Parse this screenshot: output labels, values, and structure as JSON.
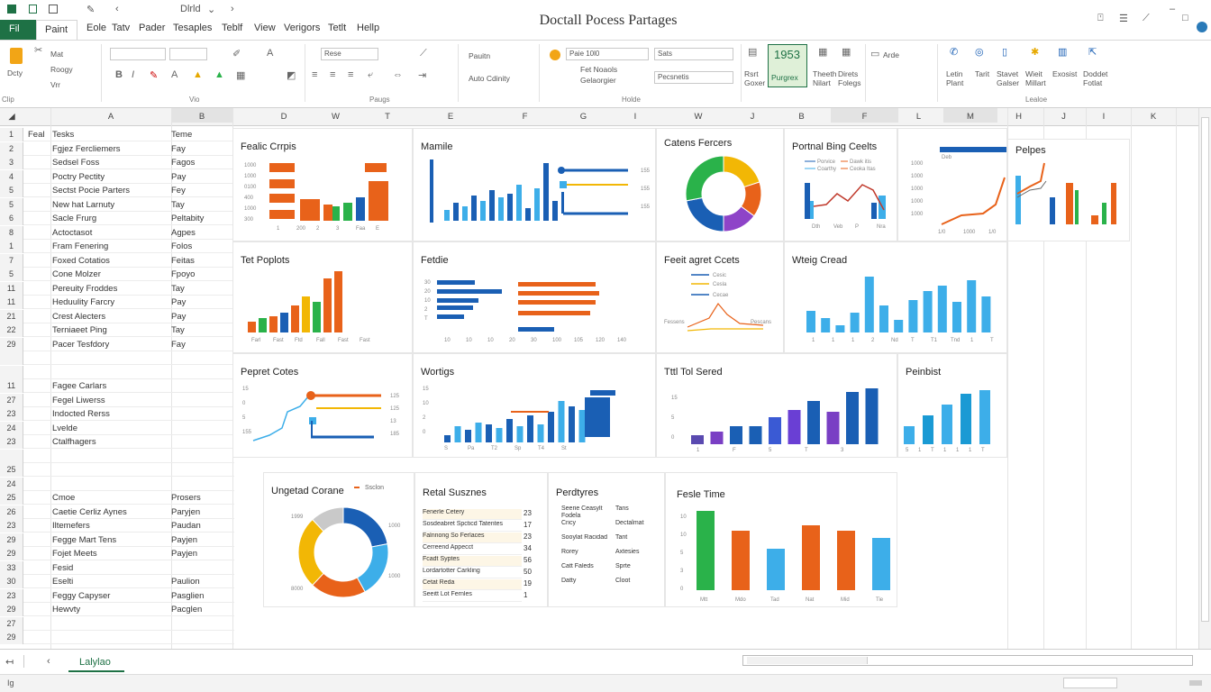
{
  "app": {
    "title": "Doctall Pocess Partages",
    "quick_access": [
      "Dlrld",
      "⌄"
    ],
    "window_controls": {
      "minimize": "–",
      "restore": "□",
      "close": "✕"
    }
  },
  "tabs": [
    {
      "label": "Fil"
    },
    {
      "label": "Paint"
    },
    {
      "label": "Eole"
    },
    {
      "label": "Tatv"
    },
    {
      "label": "Pader"
    },
    {
      "label": "Tesaples"
    },
    {
      "label": "Teblf"
    },
    {
      "label": "View"
    },
    {
      "label": "Verigors"
    },
    {
      "label": "Tetlt"
    },
    {
      "label": "Hellp"
    }
  ],
  "ribbon": {
    "clipboard": {
      "paste": "Dcty",
      "items": [
        "Mat",
        "Roogy",
        "Vrr"
      ]
    },
    "font_box": "",
    "font_size": "",
    "style_box": "Rese",
    "search_box": "Paie 10l0",
    "search_box2": "Sats",
    "pattern": "Pauitn",
    "anto_label": "Auto Cdinity",
    "items_small": [
      "Fet Noaols",
      "Gelaorgier"
    ],
    "dropdown_value": "Pecsnetis",
    "highlight_num": "1953",
    "highlight_label": "Purgrex",
    "items_right": [
      "Rsrt Goxer",
      "Theeth Nilart",
      "Direts Folegs"
    ],
    "ande": "Arde",
    "right_items": [
      "Letin Plant",
      "Tarit",
      "Stavet Galser",
      "Wieit Millart",
      "Exosist",
      "Doddet Fotlat"
    ],
    "group_labels": [
      "Clip",
      "Vio",
      "Paugs",
      "Holde",
      "Lealoe"
    ]
  },
  "columns": [
    "A",
    "B",
    "D",
    "W",
    "T",
    "E",
    "F",
    "G",
    "I",
    "W",
    "J",
    "B",
    "F",
    "L",
    "M",
    "H",
    "J",
    "I",
    "K"
  ],
  "rows": [
    {
      "n": "1",
      "a": "Tesks",
      "b": "Teme",
      "c0": "Feal"
    },
    {
      "n": "2",
      "a": "Fgjez Fercliemers",
      "b": "Fay"
    },
    {
      "n": "3",
      "a": "Sedsel Foss",
      "b": "Fagos"
    },
    {
      "n": "4",
      "a": "Poctry Pectity",
      "b": "Pay"
    },
    {
      "n": "5",
      "a": "Sectst Pocie Parters",
      "b": "Fey"
    },
    {
      "n": "5",
      "a": "New hat Larnuty",
      "b": "Tay"
    },
    {
      "n": "6",
      "a": "Sacle Frurg",
      "b": "Peltabity"
    },
    {
      "n": "8",
      "a": "Actoctasot",
      "b": "Agpes"
    },
    {
      "n": "1",
      "a": "Fram Fenering",
      "b": "Folos"
    },
    {
      "n": "7",
      "a": "Foxed Cotatios",
      "b": "Feitas"
    },
    {
      "n": "5",
      "a": "Cone Molzer",
      "b": "Fpoyo"
    },
    {
      "n": "11",
      "a": "Pereuity Froddes",
      "b": "Tay"
    },
    {
      "n": "11",
      "a": "Heduulity Farcry",
      "b": "Pay"
    },
    {
      "n": "21",
      "a": "Crest Alecters",
      "b": "Pay"
    },
    {
      "n": "22",
      "a": "Terniaeet Ping",
      "b": "Tay"
    },
    {
      "n": "29",
      "a": "Pacer Tesfdory",
      "b": "Fay"
    },
    {
      "n": "",
      "a": "",
      "b": ""
    },
    {
      "n": "",
      "a": "",
      "b": ""
    },
    {
      "n": "11",
      "a": "Fagee Carlars",
      "b": ""
    },
    {
      "n": "27",
      "a": "Fegel Liwerss",
      "b": ""
    },
    {
      "n": "23",
      "a": "Indocted Rerss",
      "b": ""
    },
    {
      "n": "24",
      "a": "Lvelde",
      "b": ""
    },
    {
      "n": "23",
      "a": "Ctalfhagers",
      "b": ""
    },
    {
      "n": "",
      "a": "",
      "b": ""
    },
    {
      "n": "25",
      "a": "",
      "b": ""
    },
    {
      "n": "24",
      "a": "",
      "b": ""
    },
    {
      "n": "25",
      "a": "Cmoe",
      "b": "Prosers"
    },
    {
      "n": "26",
      "a": "Caetie Cerliz Aynes",
      "b": "Paryjen"
    },
    {
      "n": "23",
      "a": "Iltemefers",
      "b": "Paudan"
    },
    {
      "n": "29",
      "a": "Fegge Mart Tens",
      "b": "Payjen"
    },
    {
      "n": "29",
      "a": "Fojet Meets",
      "b": "Payjen"
    },
    {
      "n": "33",
      "a": "Fesid",
      "b": ""
    },
    {
      "n": "30",
      "a": "Eselti",
      "b": "Paulion"
    },
    {
      "n": "23",
      "a": "Feggy Capyser",
      "b": "Pasglien"
    },
    {
      "n": "29",
      "a": "Hewvty",
      "b": "Pacglen"
    },
    {
      "n": "27",
      "a": "",
      "b": ""
    },
    {
      "n": "29",
      "a": "",
      "b": ""
    }
  ],
  "panels": {
    "p1": {
      "title": "Fealic Crrpis",
      "ticks": [
        "1000",
        "1000",
        "0100",
        "400",
        "1000",
        "300",
        "1",
        "200",
        "2",
        "3",
        "Faa",
        "E"
      ]
    },
    "p2": {
      "title": "Mamile",
      "ticks": [
        "155",
        "155",
        "155"
      ]
    },
    "p3": {
      "title": "Catens Fercers"
    },
    "p4": {
      "title": "Portnal Bing Ceelts",
      "legend": [
        "Porvice",
        "Dawk itis",
        "Coarthy",
        "Ceoka Itas"
      ],
      "ticks": [
        "Dth",
        "Veb",
        "P",
        "Nra"
      ]
    },
    "p5": {
      "title": "",
      "label": "Deb",
      "ticks": [
        "1000",
        "1000",
        "1000",
        "1000",
        "1000",
        "1/0",
        "1000",
        "1/0"
      ]
    },
    "p6": {
      "title": "Pelpes"
    },
    "p7": {
      "title": "Tet Poplots",
      "ticks": [
        "Farl",
        "Fast",
        "Ftd",
        "Fall",
        "Fast",
        "Fast"
      ]
    },
    "p8": {
      "title": "Fetdie",
      "ticks": [
        "30",
        "20",
        "10",
        "2",
        "T",
        "10",
        "10",
        "10",
        "20",
        "30",
        "100",
        "105",
        "120",
        "140"
      ]
    },
    "p9": {
      "title": "Feeit agret Ccets",
      "legend": [
        "Cesic",
        "Cesla",
        "Cecae"
      ],
      "ticks": [
        "Fessens",
        "Pescans"
      ]
    },
    "p10": {
      "title": "Wteig Cread",
      "ticks": [
        "1",
        "1",
        "1",
        "2",
        "Nd",
        "T",
        "T1",
        "Tnd",
        "1",
        "T"
      ]
    },
    "p11": {
      "title": "Pepret Cotes",
      "ticks": [
        "15",
        "0",
        "5",
        "155",
        "125",
        "125",
        "13",
        "185"
      ]
    },
    "p12": {
      "title": "Wortigs",
      "ticks": [
        "15",
        "10",
        "2",
        "0",
        "S",
        "Pa",
        "T2",
        "Sp",
        "T4",
        "St"
      ]
    },
    "p13": {
      "title": "Tttl Tol Sered",
      "ticks": [
        "15",
        "5",
        "0",
        "1",
        "F",
        "5",
        "T",
        "3"
      ]
    },
    "p14": {
      "title": "Peinbist",
      "ticks": [
        "5",
        "1",
        "T",
        "1",
        "1",
        "1",
        "T"
      ]
    },
    "p15": {
      "title": "Ungetad Corane",
      "legend": "Ssclon",
      "ticks": [
        "1999",
        "8000",
        "1000",
        "1000"
      ]
    },
    "p16": {
      "title": "Retal Susznes",
      "rows": [
        {
          "label": "Fenerle Cetery",
          "value": "23"
        },
        {
          "label": "Sosdeabret Spcticd Tatentes",
          "value": "17"
        },
        {
          "label": "Falnnong So Ferlaces",
          "value": "23"
        },
        {
          "label": "Cerreend Appecct",
          "value": "34"
        },
        {
          "label": "Fcadt Syptes",
          "value": "56"
        },
        {
          "label": "Lordartotter Carkling",
          "value": "50"
        },
        {
          "label": "Cetat Reda",
          "value": "19"
        },
        {
          "label": "Seeitt Lot Fernles",
          "value": "1"
        }
      ]
    },
    "p17": {
      "title": "Perdtyres",
      "rows": [
        {
          "a": "Seerie Ceasylt Fodela",
          "b": "Tans"
        },
        {
          "a": "Cricy",
          "b": "Dectalmat"
        },
        {
          "a": "Sooylat Racidad",
          "b": "Tant"
        },
        {
          "a": "Rorey",
          "b": "Axtesies"
        },
        {
          "a": "Catt Faleds",
          "b": "Sprte"
        },
        {
          "a": "Datty",
          "b": "Cloot"
        }
      ]
    },
    "p18": {
      "title": "Fesle Time",
      "ticks": [
        "10",
        "10",
        "5",
        "3",
        "0",
        "Mtt",
        "Mdo",
        "Tad",
        "Nat",
        "Mid",
        "Tie"
      ]
    }
  },
  "sheet_tab": "Lalylao",
  "status": {
    "left": "Ig"
  },
  "colors": {
    "excel_green": "#1e7145",
    "orange": "#e8621a",
    "blue": "#1a5fb4",
    "lightblue": "#3daee9",
    "green": "#2ab24a",
    "purple": "#7a3fc4",
    "yellow": "#f2b705"
  },
  "chart_data": [
    {
      "type": "bar",
      "title": "Fealic Crrpis",
      "series": [
        {
          "name": "",
          "values": [
            55,
            30,
            72,
            56,
            20,
            40,
            60,
            70
          ]
        }
      ]
    },
    {
      "type": "bar",
      "title": "Mamile",
      "series": [
        {
          "name": "",
          "values": [
            60,
            12,
            20,
            16,
            28,
            22,
            34,
            26,
            30,
            40,
            14,
            36,
            64,
            22
          ]
        }
      ]
    },
    {
      "type": "pie",
      "title": "Catens Fercers",
      "slices": [
        {
          "label": "",
          "value": 20
        },
        {
          "label": "",
          "value": 15
        },
        {
          "label": "",
          "value": 15
        },
        {
          "label": "",
          "value": 22
        },
        {
          "label": "",
          "value": 28
        }
      ]
    },
    {
      "type": "bar",
      "title": "Tet Poplots",
      "series": [
        {
          "name": "",
          "values": [
            12,
            16,
            18,
            22,
            30,
            40,
            34,
            60,
            68
          ]
        }
      ]
    },
    {
      "type": "bar",
      "title": "Wteig Cread",
      "series": [
        {
          "name": "",
          "values": [
            24,
            16,
            8,
            22,
            62,
            30,
            14,
            36,
            46,
            52,
            34,
            58,
            40
          ]
        }
      ]
    },
    {
      "type": "bar",
      "title": "Tttl Tol Sered",
      "series": [
        {
          "name": "",
          "values": [
            10,
            14,
            20,
            20,
            30,
            38,
            48,
            36,
            58,
            62
          ]
        }
      ]
    },
    {
      "type": "bar",
      "title": "Peinbist",
      "series": [
        {
          "name": "",
          "values": [
            20,
            32,
            44,
            56,
            60
          ]
        }
      ]
    },
    {
      "type": "pie",
      "title": "Ungetad Corane",
      "slices": [
        {
          "label": "",
          "value": 22
        },
        {
          "label": "",
          "value": 20
        },
        {
          "label": "",
          "value": 20
        },
        {
          "label": "",
          "value": 26
        },
        {
          "label": "",
          "value": 12
        }
      ]
    },
    {
      "type": "bar",
      "title": "Fesle Time",
      "series": [
        {
          "name": "",
          "values": [
            88,
            66,
            46,
            72,
            66,
            58
          ]
        }
      ]
    }
  ]
}
